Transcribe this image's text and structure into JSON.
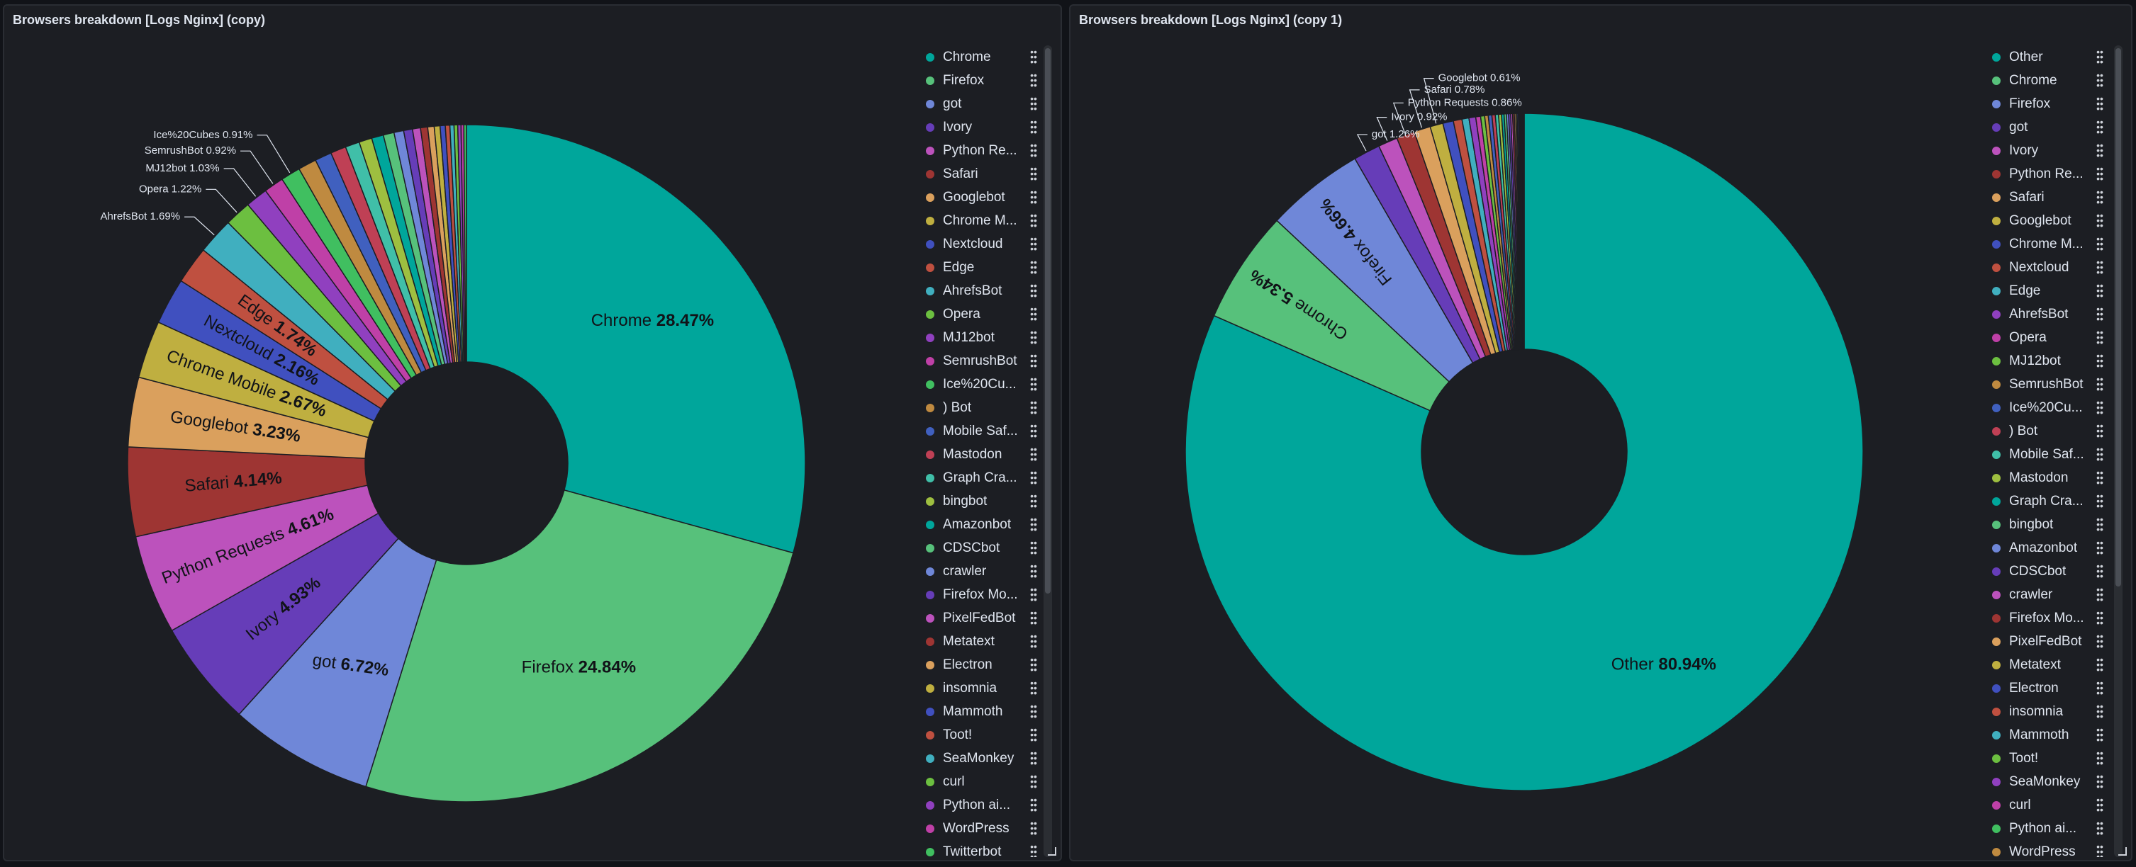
{
  "panels": [
    {
      "title": "Browsers breakdown [Logs Nginx] (copy)",
      "legend": [
        {
          "label": "Chrome",
          "color": "#00a69b"
        },
        {
          "label": "Firefox",
          "color": "#57c17b"
        },
        {
          "label": "got",
          "color": "#6f87d8"
        },
        {
          "label": "Ivory",
          "color": "#663db8"
        },
        {
          "label": "Python Re...",
          "color": "#bc52bc"
        },
        {
          "label": "Safari",
          "color": "#9e3533"
        },
        {
          "label": "Googlebot",
          "color": "#daa05d"
        },
        {
          "label": "Chrome M...",
          "color": "#bfaf40"
        },
        {
          "label": "Nextcloud",
          "color": "#4050bf"
        },
        {
          "label": "Edge",
          "color": "#bf5040"
        },
        {
          "label": "AhrefsBot",
          "color": "#40afbf"
        },
        {
          "label": "Opera",
          "color": "#6cbf40"
        },
        {
          "label": "MJ12bot",
          "color": "#9040bf"
        },
        {
          "label": "SemrushBot",
          "color": "#bf40a7"
        },
        {
          "label": "Ice%20Cu...",
          "color": "#40bf60"
        },
        {
          "label": ") Bot",
          "color": "#bf8a40"
        },
        {
          "label": "Mobile Saf...",
          "color": "#4060bf"
        },
        {
          "label": "Mastodon",
          "color": "#bf4055"
        },
        {
          "label": "Graph Cra...",
          "color": "#40bfa8"
        },
        {
          "label": "bingbot",
          "color": "#9ebf40"
        },
        {
          "label": "Amazonbot",
          "color": "#00a69b"
        },
        {
          "label": "CDSCbot",
          "color": "#57c17b"
        },
        {
          "label": "crawler",
          "color": "#6f87d8"
        },
        {
          "label": "Firefox Mo...",
          "color": "#663db8"
        },
        {
          "label": "PixelFedBot",
          "color": "#bc52bc"
        },
        {
          "label": "Metatext",
          "color": "#9e3533"
        },
        {
          "label": "Electron",
          "color": "#daa05d"
        },
        {
          "label": "insomnia",
          "color": "#bfaf40"
        },
        {
          "label": "Mammoth",
          "color": "#4050bf"
        },
        {
          "label": "Toot!",
          "color": "#bf5040"
        },
        {
          "label": "SeaMonkey",
          "color": "#40afbf"
        },
        {
          "label": "curl",
          "color": "#6cbf40"
        },
        {
          "label": "Python ai...",
          "color": "#9040bf"
        },
        {
          "label": "WordPress",
          "color": "#bf40a7"
        },
        {
          "label": "Twitterbot",
          "color": "#40bf60"
        }
      ]
    },
    {
      "title": "Browsers breakdown [Logs Nginx] (copy 1)",
      "legend": [
        {
          "label": "Other",
          "color": "#00a69b"
        },
        {
          "label": "Chrome",
          "color": "#57c17b"
        },
        {
          "label": "Firefox",
          "color": "#6f87d8"
        },
        {
          "label": "got",
          "color": "#663db8"
        },
        {
          "label": "Ivory",
          "color": "#bc52bc"
        },
        {
          "label": "Python Re...",
          "color": "#9e3533"
        },
        {
          "label": "Safari",
          "color": "#daa05d"
        },
        {
          "label": "Googlebot",
          "color": "#bfaf40"
        },
        {
          "label": "Chrome M...",
          "color": "#4050bf"
        },
        {
          "label": "Nextcloud",
          "color": "#bf5040"
        },
        {
          "label": "Edge",
          "color": "#40afbf"
        },
        {
          "label": "AhrefsBot",
          "color": "#9040bf"
        },
        {
          "label": "Opera",
          "color": "#bf40a7"
        },
        {
          "label": "MJ12bot",
          "color": "#6cbf40"
        },
        {
          "label": "SemrushBot",
          "color": "#bf8a40"
        },
        {
          "label": "Ice%20Cu...",
          "color": "#4060bf"
        },
        {
          "label": ") Bot",
          "color": "#bf4055"
        },
        {
          "label": "Mobile Saf...",
          "color": "#40bfa8"
        },
        {
          "label": "Mastodon",
          "color": "#9ebf40"
        },
        {
          "label": "Graph Cra...",
          "color": "#00a69b"
        },
        {
          "label": "bingbot",
          "color": "#57c17b"
        },
        {
          "label": "Amazonbot",
          "color": "#6f87d8"
        },
        {
          "label": "CDSCbot",
          "color": "#663db8"
        },
        {
          "label": "crawler",
          "color": "#bc52bc"
        },
        {
          "label": "Firefox Mo...",
          "color": "#9e3533"
        },
        {
          "label": "PixelFedBot",
          "color": "#daa05d"
        },
        {
          "label": "Metatext",
          "color": "#bfaf40"
        },
        {
          "label": "Electron",
          "color": "#4050bf"
        },
        {
          "label": "insomnia",
          "color": "#bf5040"
        },
        {
          "label": "Mammoth",
          "color": "#40afbf"
        },
        {
          "label": "Toot!",
          "color": "#6cbf40"
        },
        {
          "label": "SeaMonkey",
          "color": "#9040bf"
        },
        {
          "label": "curl",
          "color": "#bf40a7"
        },
        {
          "label": "Python ai...",
          "color": "#40bf60"
        },
        {
          "label": "WordPress",
          "color": "#bf8a40"
        }
      ]
    }
  ],
  "chart_data": [
    {
      "type": "pie",
      "title": "Browsers breakdown [Logs Nginx] (copy)",
      "donut": true,
      "slices": [
        {
          "name": "Chrome",
          "value": 28.47,
          "color": "#00a69b",
          "label": "Chrome",
          "pct": "28.47%"
        },
        {
          "name": "Firefox",
          "value": 24.84,
          "color": "#57c17b",
          "label": "Firefox",
          "pct": "24.84%"
        },
        {
          "name": "got",
          "value": 6.72,
          "color": "#6f87d8",
          "label": "got",
          "pct": "6.72%"
        },
        {
          "name": "Ivory",
          "value": 4.93,
          "color": "#663db8",
          "label": "Ivory",
          "pct": "4.93%"
        },
        {
          "name": "Python Requests",
          "value": 4.61,
          "color": "#bc52bc",
          "label": "Python Requests",
          "pct": "4.61%"
        },
        {
          "name": "Safari",
          "value": 4.14,
          "color": "#9e3533",
          "label": "Safari",
          "pct": "4.14%"
        },
        {
          "name": "Googlebot",
          "value": 3.23,
          "color": "#daa05d",
          "label": "Googlebot",
          "pct": "3.23%"
        },
        {
          "name": "Chrome Mobile",
          "value": 2.67,
          "color": "#bfaf40",
          "label": "Chrome Mobile",
          "pct": "2.67%"
        },
        {
          "name": "Nextcloud",
          "value": 2.16,
          "color": "#4050bf",
          "label": "Nextcloud",
          "pct": "2.16%"
        },
        {
          "name": "Edge",
          "value": 1.74,
          "color": "#bf5040",
          "label": "Edge",
          "pct": "1.74%"
        },
        {
          "name": "AhrefsBot",
          "value": 1.69,
          "color": "#40afbf",
          "label": "AhrefsBot",
          "pct": "1.69%"
        },
        {
          "name": "Opera",
          "value": 1.22,
          "color": "#6cbf40",
          "label": "Opera",
          "pct": "1.22%"
        },
        {
          "name": "MJ12bot",
          "value": 1.03,
          "color": "#9040bf",
          "label": "MJ12bot",
          "pct": "1.03%"
        },
        {
          "name": "SemrushBot",
          "value": 0.92,
          "color": "#bf40a7",
          "label": "SemrushBot",
          "pct": "0.92%"
        },
        {
          "name": "Ice%20Cubes",
          "value": 0.91,
          "color": "#40bf60",
          "label": "Ice%20Cubes",
          "pct": "0.91%"
        },
        {
          "name": ") Bot",
          "value": 0.85,
          "color": "#bf8a40"
        },
        {
          "name": "Mobile Safari",
          "value": 0.78,
          "color": "#4060bf"
        },
        {
          "name": "Mastodon",
          "value": 0.72,
          "color": "#bf4055"
        },
        {
          "name": "Graph Crawler",
          "value": 0.66,
          "color": "#40bfa8"
        },
        {
          "name": "bingbot",
          "value": 0.6,
          "color": "#9ebf40"
        },
        {
          "name": "Amazonbot",
          "value": 0.55,
          "color": "#00a69b"
        },
        {
          "name": "CDSCbot",
          "value": 0.5,
          "color": "#57c17b"
        },
        {
          "name": "crawler",
          "value": 0.45,
          "color": "#6f87d8"
        },
        {
          "name": "Firefox Mobile",
          "value": 0.41,
          "color": "#663db8"
        },
        {
          "name": "PixelFedBot",
          "value": 0.37,
          "color": "#bc52bc"
        },
        {
          "name": "Metatext",
          "value": 0.33,
          "color": "#9e3533"
        },
        {
          "name": "Electron",
          "value": 0.3,
          "color": "#daa05d"
        },
        {
          "name": "insomnia",
          "value": 0.27,
          "color": "#bfaf40"
        },
        {
          "name": "Mammoth",
          "value": 0.24,
          "color": "#4050bf"
        },
        {
          "name": "Toot!",
          "value": 0.21,
          "color": "#bf5040"
        },
        {
          "name": "SeaMonkey",
          "value": 0.19,
          "color": "#40afbf"
        },
        {
          "name": "curl",
          "value": 0.17,
          "color": "#6cbf40"
        },
        {
          "name": "Python aiohttp",
          "value": 0.15,
          "color": "#9040bf"
        },
        {
          "name": "WordPress",
          "value": 0.13,
          "color": "#bf40a7"
        },
        {
          "name": "Twitterbot",
          "value": 0.12,
          "color": "#40bf60"
        }
      ]
    },
    {
      "type": "pie",
      "title": "Browsers breakdown [Logs Nginx] (copy 1)",
      "donut": true,
      "slices": [
        {
          "name": "Other",
          "value": 80.94,
          "color": "#00a69b",
          "label": "Other",
          "pct": "80.94%"
        },
        {
          "name": "Chrome",
          "value": 5.34,
          "color": "#57c17b",
          "label": "Chrome",
          "pct": "5.34%"
        },
        {
          "name": "Firefox",
          "value": 4.66,
          "color": "#6f87d8",
          "label": "Firefox",
          "pct": "4.66%"
        },
        {
          "name": "got",
          "value": 1.26,
          "color": "#663db8",
          "label": "got",
          "pct": "1.26%"
        },
        {
          "name": "Ivory",
          "value": 0.92,
          "color": "#bc52bc",
          "label": "Ivory",
          "pct": "0.92%"
        },
        {
          "name": "Python Requests",
          "value": 0.86,
          "color": "#9e3533",
          "label": "Python Requests",
          "pct": "0.86%"
        },
        {
          "name": "Safari",
          "value": 0.78,
          "color": "#daa05d",
          "label": "Safari",
          "pct": "0.78%"
        },
        {
          "name": "Googlebot",
          "value": 0.61,
          "color": "#bfaf40",
          "label": "Googlebot",
          "pct": "0.61%"
        },
        {
          "name": "Chrome Mobile",
          "value": 0.5,
          "color": "#4050bf"
        },
        {
          "name": "Nextcloud",
          "value": 0.41,
          "color": "#bf5040"
        },
        {
          "name": "Edge",
          "value": 0.33,
          "color": "#40afbf"
        },
        {
          "name": "AhrefsBot",
          "value": 0.32,
          "color": "#9040bf"
        },
        {
          "name": "Opera",
          "value": 0.23,
          "color": "#bf40a7"
        },
        {
          "name": "MJ12bot",
          "value": 0.19,
          "color": "#6cbf40"
        },
        {
          "name": "SemrushBot",
          "value": 0.17,
          "color": "#bf8a40"
        },
        {
          "name": "Ice%20Cubes",
          "value": 0.17,
          "color": "#4060bf"
        },
        {
          "name": ") Bot",
          "value": 0.16,
          "color": "#bf4055"
        },
        {
          "name": "Mobile Safari",
          "value": 0.15,
          "color": "#40bfa8"
        },
        {
          "name": "Mastodon",
          "value": 0.14,
          "color": "#9ebf40"
        },
        {
          "name": "Graph Crawler",
          "value": 0.12,
          "color": "#00a69b"
        },
        {
          "name": "bingbot",
          "value": 0.11,
          "color": "#57c17b"
        },
        {
          "name": "Amazonbot",
          "value": 0.1,
          "color": "#6f87d8"
        },
        {
          "name": "CDSCbot",
          "value": 0.1,
          "color": "#663db8"
        },
        {
          "name": "crawler",
          "value": 0.09,
          "color": "#bc52bc"
        },
        {
          "name": "Firefox Mobile",
          "value": 0.08,
          "color": "#9e3533"
        },
        {
          "name": "PixelFedBot",
          "value": 0.07,
          "color": "#daa05d"
        },
        {
          "name": "Metatext",
          "value": 0.06,
          "color": "#bfaf40"
        },
        {
          "name": "Electron",
          "value": 0.06,
          "color": "#4050bf"
        },
        {
          "name": "insomnia",
          "value": 0.05,
          "color": "#bf5040"
        },
        {
          "name": "Mammoth",
          "value": 0.05,
          "color": "#40afbf"
        },
        {
          "name": "Toot!",
          "value": 0.04,
          "color": "#6cbf40"
        },
        {
          "name": "SeaMonkey",
          "value": 0.04,
          "color": "#9040bf"
        },
        {
          "name": "curl",
          "value": 0.03,
          "color": "#bf40a7"
        },
        {
          "name": "Python aiohttp",
          "value": 0.03,
          "color": "#40bf60"
        },
        {
          "name": "WordPress",
          "value": 0.03,
          "color": "#bf8a40"
        }
      ]
    }
  ]
}
